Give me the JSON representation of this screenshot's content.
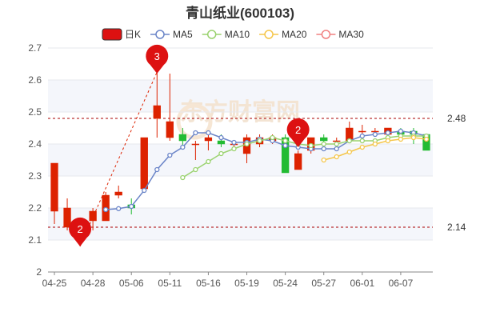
{
  "chart_data": {
    "type": "candlestick",
    "title": "青山纸业(600103)",
    "ylim": [
      2.0,
      2.7
    ],
    "y_ticks": [
      "2",
      "2.1",
      "2.2",
      "2.3",
      "2.4",
      "2.5",
      "2.6",
      "2.7"
    ],
    "x_tick_labels": [
      "04-25",
      "04-28",
      "05-06",
      "05-11",
      "05-16",
      "05-19",
      "05-24",
      "05-27",
      "06-01",
      "06-07"
    ],
    "legend": [
      {
        "name": "日K",
        "color": "#dd2200"
      },
      {
        "name": "MA5",
        "color": "#6b85c8"
      },
      {
        "name": "MA10",
        "color": "#9ad26f"
      },
      {
        "name": "MA20",
        "color": "#f5c64a"
      },
      {
        "name": "MA30",
        "color": "#f08080"
      }
    ],
    "reference_lines": [
      {
        "value": 2.48,
        "label": "2.48"
      },
      {
        "value": 2.14,
        "label": "2.14"
      }
    ],
    "markers": [
      {
        "label": "2",
        "x": "04-27",
        "y": 2.08
      },
      {
        "label": "3",
        "x": "05-10",
        "y": 2.62
      },
      {
        "label": "2",
        "x": "05-25",
        "y": 2.39
      }
    ],
    "colors": {
      "up": "#dd2200",
      "down": "#22bb33",
      "grid": "#e6e8ee",
      "band": "#f4f6fb"
    },
    "watermark": "东方财富网",
    "candles": [
      {
        "date": "04-25",
        "open": 2.19,
        "high": 2.34,
        "low": 2.15,
        "close": 2.34
      },
      {
        "date": "04-26",
        "open": 2.14,
        "high": 2.23,
        "low": 2.13,
        "close": 2.2
      },
      {
        "date": "04-27",
        "open": 2.12,
        "high": 2.15,
        "low": 2.08,
        "close": 2.14
      },
      {
        "date": "04-28",
        "open": 2.16,
        "high": 2.2,
        "low": 2.13,
        "close": 2.19
      },
      {
        "date": "04-29",
        "open": 2.16,
        "high": 2.25,
        "low": 2.16,
        "close": 2.24
      },
      {
        "date": "05-05",
        "open": 2.24,
        "high": 2.27,
        "low": 2.23,
        "close": 2.25
      },
      {
        "date": "05-06",
        "open": 2.21,
        "high": 2.23,
        "low": 2.18,
        "close": 2.2
      },
      {
        "date": "05-09",
        "open": 2.26,
        "high": 2.42,
        "low": 2.25,
        "close": 2.42
      },
      {
        "date": "05-10",
        "open": 2.48,
        "high": 2.67,
        "low": 2.42,
        "close": 2.52
      },
      {
        "date": "05-11",
        "open": 2.42,
        "high": 2.62,
        "low": 2.41,
        "close": 2.47
      },
      {
        "date": "05-12",
        "open": 2.43,
        "high": 2.45,
        "low": 2.39,
        "close": 2.41
      },
      {
        "date": "05-13",
        "open": 2.4,
        "high": 2.41,
        "low": 2.35,
        "close": 2.4
      },
      {
        "date": "05-16",
        "open": 2.41,
        "high": 2.43,
        "low": 2.38,
        "close": 2.42
      },
      {
        "date": "05-17",
        "open": 2.41,
        "high": 2.43,
        "low": 2.39,
        "close": 2.4
      },
      {
        "date": "05-18",
        "open": 2.4,
        "high": 2.41,
        "low": 2.38,
        "close": 2.4
      },
      {
        "date": "05-19",
        "open": 2.37,
        "high": 2.43,
        "low": 2.34,
        "close": 2.42
      },
      {
        "date": "05-20",
        "open": 2.4,
        "high": 2.43,
        "low": 2.39,
        "close": 2.42
      },
      {
        "date": "05-23",
        "open": 2.41,
        "high": 2.43,
        "low": 2.4,
        "close": 2.42
      },
      {
        "date": "05-24",
        "open": 2.42,
        "high": 2.43,
        "low": 2.31,
        "close": 2.31
      },
      {
        "date": "05-25",
        "open": 2.32,
        "high": 2.38,
        "low": 2.32,
        "close": 2.37
      },
      {
        "date": "05-26",
        "open": 2.38,
        "high": 2.42,
        "low": 2.37,
        "close": 2.42
      },
      {
        "date": "05-27",
        "open": 2.42,
        "high": 2.43,
        "low": 2.4,
        "close": 2.41
      },
      {
        "date": "05-30",
        "open": 2.41,
        "high": 2.42,
        "low": 2.4,
        "close": 2.41
      },
      {
        "date": "05-31",
        "open": 2.41,
        "high": 2.47,
        "low": 2.41,
        "close": 2.45
      },
      {
        "date": "06-01",
        "open": 2.44,
        "high": 2.46,
        "low": 2.41,
        "close": 2.44
      },
      {
        "date": "06-02",
        "open": 2.44,
        "high": 2.45,
        "low": 2.43,
        "close": 2.44
      },
      {
        "date": "06-06",
        "open": 2.43,
        "high": 2.45,
        "low": 2.42,
        "close": 2.45
      },
      {
        "date": "06-07",
        "open": 2.44,
        "high": 2.45,
        "low": 2.43,
        "close": 2.43
      },
      {
        "date": "06-08",
        "open": 2.44,
        "high": 2.45,
        "low": 2.4,
        "close": 2.43
      },
      {
        "date": "06-09",
        "open": 2.43,
        "high": 2.43,
        "low": 2.38,
        "close": 2.38
      }
    ],
    "series": [
      {
        "name": "MA5",
        "values": [
          null,
          null,
          null,
          null,
          2.195,
          2.198,
          2.205,
          2.255,
          2.32,
          2.365,
          2.39,
          2.435,
          2.435,
          2.42,
          2.405,
          2.405,
          2.415,
          2.41,
          2.395,
          2.39,
          2.385,
          2.385,
          2.385,
          2.41,
          2.425,
          2.43,
          2.435,
          2.44,
          2.435,
          2.425
        ]
      },
      {
        "name": "MA10",
        "values": [
          null,
          null,
          null,
          null,
          null,
          null,
          null,
          null,
          null,
          null,
          2.295,
          2.32,
          2.345,
          2.37,
          2.385,
          2.4,
          2.41,
          2.42,
          2.41,
          2.4,
          2.395,
          2.4,
          2.4,
          2.41,
          2.41,
          2.41,
          2.42,
          2.425,
          2.425,
          2.425
        ]
      },
      {
        "name": "MA20",
        "values": [
          null,
          null,
          null,
          null,
          null,
          null,
          null,
          null,
          null,
          null,
          null,
          null,
          null,
          null,
          null,
          null,
          null,
          null,
          null,
          null,
          null,
          2.35,
          2.36,
          2.375,
          2.39,
          2.4,
          2.41,
          2.415,
          2.42,
          2.415
        ]
      },
      {
        "name": "MA30",
        "values": []
      }
    ]
  }
}
